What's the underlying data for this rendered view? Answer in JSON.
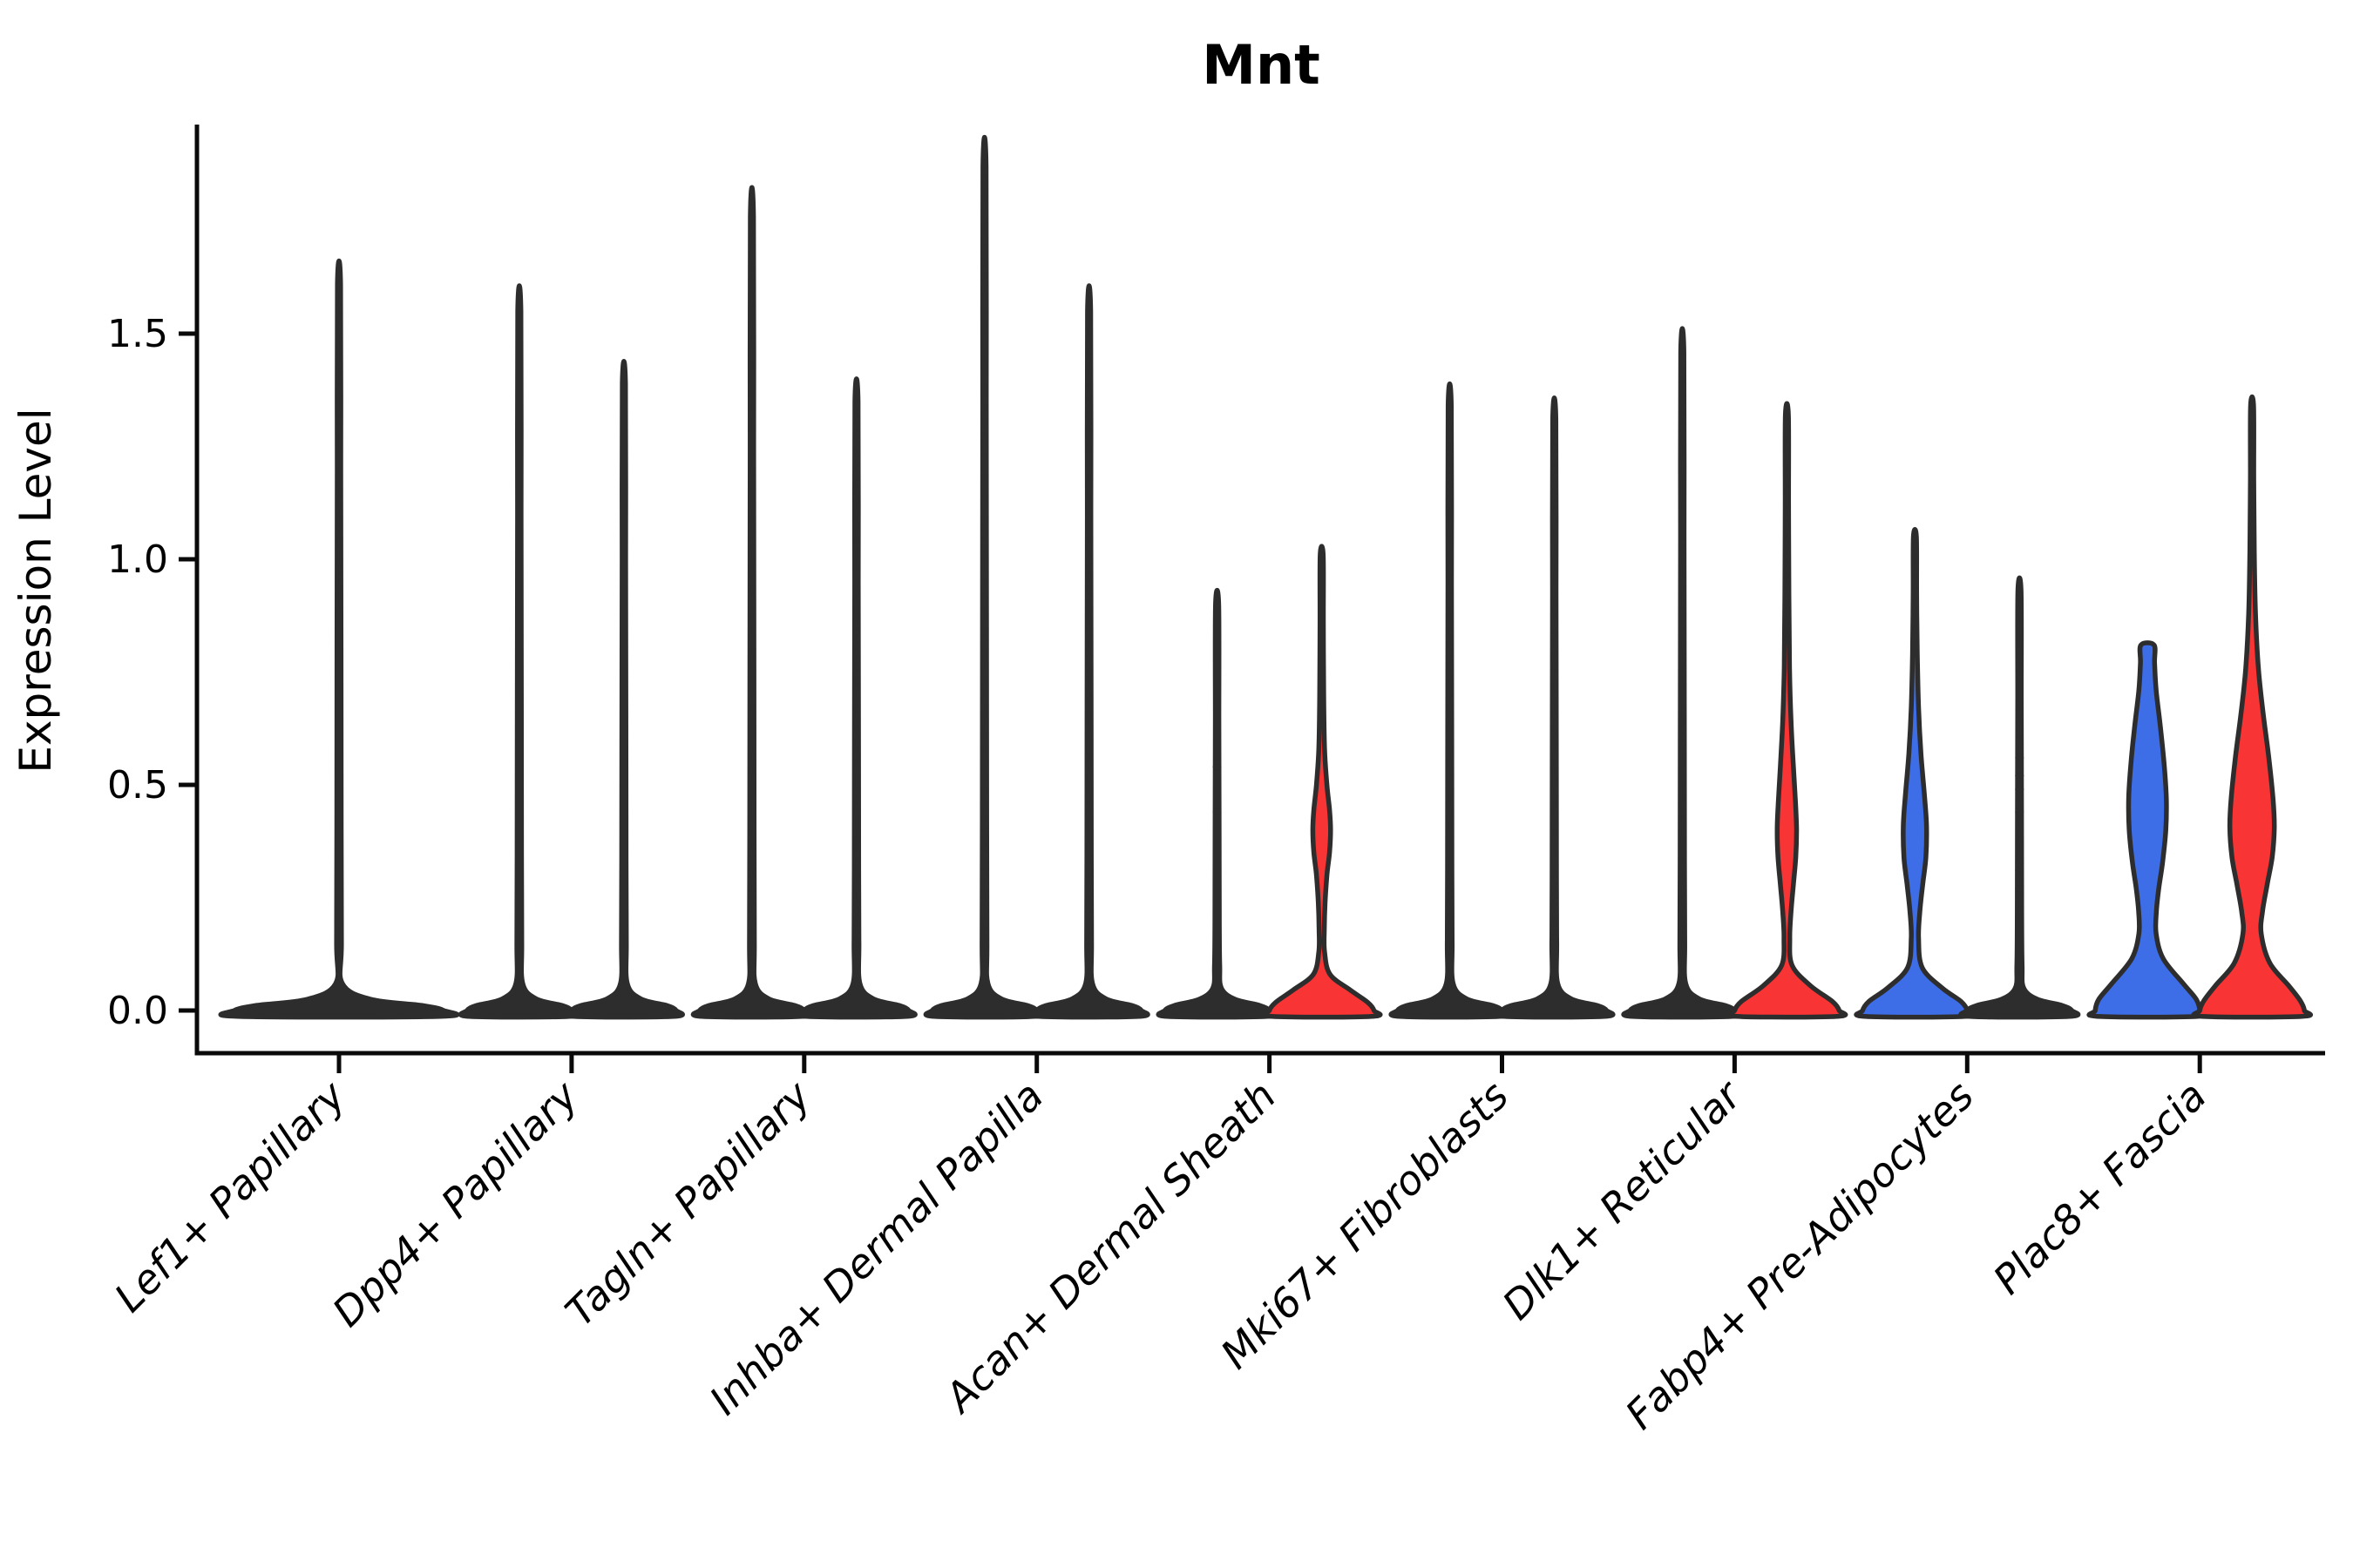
{
  "chart_data": {
    "type": "violin",
    "title": "Mnt",
    "ylabel": "Expression Level",
    "xlabel": "",
    "ylim": [
      -0.06,
      1.97
    ],
    "yticks": [
      {
        "value": 0.0,
        "label": "0.0"
      },
      {
        "value": 0.5,
        "label": "0.5"
      },
      {
        "value": 1.0,
        "label": "1.0"
      },
      {
        "value": 1.5,
        "label": "1.5"
      }
    ],
    "grid": false,
    "legend": "none",
    "categories": [
      "Lef1+ Papillary",
      "Dpp4+ Papillary",
      "Tagln+ Papillary",
      "Inhba+ Dermal Papilla",
      "Acan+ Dermal Sheath",
      "Mki67+ Fibroblasts",
      "Dlk1+ Reticular",
      "Fabp4+ Pre-Adipocytes",
      "Plac8+ Fascia"
    ],
    "colors": {
      "group_blue": "#3E6EE7",
      "group_red": "#F93434",
      "outline": "#2d2d2d",
      "axis": "#0a0a0a"
    },
    "note": "Split violin plot; most violins collapse to a thin spike (max expression) over a flat zero-density base. fill_visible=false means fill is hidden (spike thinner than outline).",
    "violins": [
      {
        "category_index": 0,
        "side": "center",
        "fill": "none",
        "fill_visible": false,
        "max_value": 1.61,
        "width_scale": 2,
        "profile": [
          [
            1.61,
            0.015
          ],
          [
            1.2,
            0.017
          ],
          [
            0.8,
            0.019
          ],
          [
            0.4,
            0.021
          ],
          [
            0.15,
            0.023
          ],
          [
            0.06,
            0.032
          ],
          [
            0.025,
            0.3
          ],
          [
            0.011,
            0.8
          ],
          [
            0.0,
            1.0
          ],
          [
            -0.013,
            0.97
          ]
        ],
        "points": []
      },
      {
        "category_index": 1,
        "side": "left",
        "fill": "blue",
        "fill_visible": false,
        "max_value": 1.55,
        "width_scale": 1,
        "profile": [
          [
            1.55,
            0.03
          ],
          [
            1.1,
            0.034
          ],
          [
            0.7,
            0.038
          ],
          [
            0.35,
            0.042
          ],
          [
            0.15,
            0.046
          ],
          [
            0.06,
            0.065
          ],
          [
            0.026,
            0.32
          ],
          [
            0.011,
            0.82
          ],
          [
            0.0,
            1.0
          ],
          [
            -0.013,
            0.96
          ]
        ],
        "points": []
      },
      {
        "category_index": 1,
        "side": "right",
        "fill": "red",
        "fill_visible": false,
        "max_value": 1.39,
        "width_scale": 1,
        "profile": [
          [
            1.39,
            0.03
          ],
          [
            1.0,
            0.034
          ],
          [
            0.65,
            0.038
          ],
          [
            0.33,
            0.042
          ],
          [
            0.15,
            0.046
          ],
          [
            0.06,
            0.065
          ],
          [
            0.026,
            0.32
          ],
          [
            0.011,
            0.82
          ],
          [
            0.0,
            1.0
          ],
          [
            -0.013,
            0.96
          ]
        ],
        "points": []
      },
      {
        "category_index": 2,
        "side": "left",
        "fill": "blue",
        "fill_visible": false,
        "max_value": 1.76,
        "width_scale": 1,
        "profile": [
          [
            1.76,
            0.03
          ],
          [
            1.25,
            0.034
          ],
          [
            0.8,
            0.038
          ],
          [
            0.4,
            0.042
          ],
          [
            0.15,
            0.046
          ],
          [
            0.06,
            0.065
          ],
          [
            0.026,
            0.32
          ],
          [
            0.011,
            0.82
          ],
          [
            0.0,
            1.0
          ],
          [
            -0.013,
            0.96
          ]
        ],
        "points": []
      },
      {
        "category_index": 2,
        "side": "right",
        "fill": "red",
        "fill_visible": false,
        "max_value": 1.35,
        "width_scale": 1,
        "profile": [
          [
            1.35,
            0.03
          ],
          [
            0.95,
            0.034
          ],
          [
            0.62,
            0.038
          ],
          [
            0.31,
            0.042
          ],
          [
            0.15,
            0.046
          ],
          [
            0.06,
            0.065
          ],
          [
            0.026,
            0.32
          ],
          [
            0.011,
            0.82
          ],
          [
            0.0,
            1.0
          ],
          [
            -0.013,
            0.96
          ]
        ],
        "points": []
      },
      {
        "category_index": 3,
        "side": "left",
        "fill": "blue",
        "fill_visible": false,
        "max_value": 1.87,
        "width_scale": 1,
        "profile": [
          [
            1.87,
            0.03
          ],
          [
            1.35,
            0.034
          ],
          [
            0.85,
            0.038
          ],
          [
            0.42,
            0.042
          ],
          [
            0.15,
            0.046
          ],
          [
            0.06,
            0.065
          ],
          [
            0.026,
            0.32
          ],
          [
            0.011,
            0.82
          ],
          [
            0.0,
            1.0
          ],
          [
            -0.013,
            0.96
          ]
        ],
        "points": []
      },
      {
        "category_index": 3,
        "side": "right",
        "fill": "red",
        "fill_visible": false,
        "max_value": 1.55,
        "width_scale": 1,
        "profile": [
          [
            1.55,
            0.03
          ],
          [
            1.1,
            0.034
          ],
          [
            0.7,
            0.038
          ],
          [
            0.35,
            0.042
          ],
          [
            0.15,
            0.046
          ],
          [
            0.06,
            0.065
          ],
          [
            0.026,
            0.32
          ],
          [
            0.011,
            0.82
          ],
          [
            0.0,
            1.0
          ],
          [
            -0.013,
            0.96
          ]
        ],
        "points": []
      },
      {
        "category_index": 4,
        "side": "left",
        "fill": "blue",
        "fill_visible": false,
        "max_value": 0.9,
        "width_scale": 1,
        "profile": [
          [
            0.9,
            0.03
          ],
          [
            0.65,
            0.034
          ],
          [
            0.4,
            0.038
          ],
          [
            0.2,
            0.042
          ],
          [
            0.1,
            0.05
          ],
          [
            0.05,
            0.08
          ],
          [
            0.025,
            0.34
          ],
          [
            0.011,
            0.82
          ],
          [
            0.0,
            1.0
          ],
          [
            -0.013,
            0.96
          ]
        ],
        "points": [
          0.54,
          0.44
        ]
      },
      {
        "category_index": 4,
        "side": "right",
        "fill": "red",
        "fill_visible": true,
        "max_value": 1.01,
        "width_scale": 1,
        "profile": [
          [
            1.01,
            0.028
          ],
          [
            0.86,
            0.032
          ],
          [
            0.7,
            0.038
          ],
          [
            0.58,
            0.055
          ],
          [
            0.5,
            0.1
          ],
          [
            0.445,
            0.15
          ],
          [
            0.4,
            0.17
          ],
          [
            0.35,
            0.15
          ],
          [
            0.3,
            0.1
          ],
          [
            0.24,
            0.065
          ],
          [
            0.18,
            0.05
          ],
          [
            0.13,
            0.055
          ],
          [
            0.08,
            0.16
          ],
          [
            0.045,
            0.55
          ],
          [
            0.018,
            0.88
          ],
          [
            0.0,
            1.0
          ],
          [
            -0.013,
            0.96
          ]
        ],
        "points": []
      },
      {
        "category_index": 5,
        "side": "left",
        "fill": "blue",
        "fill_visible": false,
        "max_value": 1.34,
        "width_scale": 1,
        "profile": [
          [
            1.34,
            0.03
          ],
          [
            0.95,
            0.034
          ],
          [
            0.62,
            0.038
          ],
          [
            0.31,
            0.042
          ],
          [
            0.15,
            0.046
          ],
          [
            0.06,
            0.065
          ],
          [
            0.026,
            0.32
          ],
          [
            0.011,
            0.82
          ],
          [
            0.0,
            1.0
          ],
          [
            -0.013,
            0.96
          ]
        ],
        "points": []
      },
      {
        "category_index": 5,
        "side": "right",
        "fill": "red",
        "fill_visible": false,
        "max_value": 1.31,
        "width_scale": 1,
        "profile": [
          [
            1.31,
            0.03
          ],
          [
            0.93,
            0.034
          ],
          [
            0.6,
            0.038
          ],
          [
            0.3,
            0.042
          ],
          [
            0.15,
            0.046
          ],
          [
            0.06,
            0.065
          ],
          [
            0.026,
            0.32
          ],
          [
            0.011,
            0.82
          ],
          [
            0.0,
            1.0
          ],
          [
            -0.013,
            0.96
          ]
        ],
        "points": []
      },
      {
        "category_index": 6,
        "side": "left",
        "fill": "blue",
        "fill_visible": false,
        "max_value": 1.46,
        "width_scale": 1,
        "profile": [
          [
            1.46,
            0.03
          ],
          [
            1.05,
            0.034
          ],
          [
            0.66,
            0.038
          ],
          [
            0.33,
            0.042
          ],
          [
            0.15,
            0.046
          ],
          [
            0.06,
            0.065
          ],
          [
            0.026,
            0.32
          ],
          [
            0.011,
            0.82
          ],
          [
            0.0,
            1.0
          ],
          [
            -0.013,
            0.96
          ]
        ],
        "points": []
      },
      {
        "category_index": 6,
        "side": "right",
        "fill": "red",
        "fill_visible": true,
        "max_value": 1.32,
        "width_scale": 1,
        "profile": [
          [
            1.32,
            0.028
          ],
          [
            1.12,
            0.032
          ],
          [
            0.92,
            0.038
          ],
          [
            0.76,
            0.05
          ],
          [
            0.64,
            0.08
          ],
          [
            0.54,
            0.125
          ],
          [
            0.46,
            0.165
          ],
          [
            0.4,
            0.185
          ],
          [
            0.34,
            0.17
          ],
          [
            0.28,
            0.125
          ],
          [
            0.22,
            0.08
          ],
          [
            0.16,
            0.055
          ],
          [
            0.1,
            0.1
          ],
          [
            0.055,
            0.45
          ],
          [
            0.02,
            0.87
          ],
          [
            0.0,
            1.0
          ],
          [
            -0.013,
            0.96
          ]
        ],
        "points": []
      },
      {
        "category_index": 7,
        "side": "left",
        "fill": "blue",
        "fill_visible": true,
        "max_value": 1.05,
        "width_scale": 1,
        "profile": [
          [
            1.05,
            0.028
          ],
          [
            0.92,
            0.033
          ],
          [
            0.79,
            0.045
          ],
          [
            0.67,
            0.07
          ],
          [
            0.57,
            0.115
          ],
          [
            0.48,
            0.18
          ],
          [
            0.41,
            0.222
          ],
          [
            0.34,
            0.21
          ],
          [
            0.28,
            0.15
          ],
          [
            0.22,
            0.095
          ],
          [
            0.16,
            0.07
          ],
          [
            0.095,
            0.14
          ],
          [
            0.05,
            0.52
          ],
          [
            0.02,
            0.88
          ],
          [
            0.0,
            1.0
          ],
          [
            -0.013,
            0.96
          ]
        ],
        "points": []
      },
      {
        "category_index": 7,
        "side": "right",
        "fill": "red",
        "fill_visible": false,
        "max_value": 0.93,
        "width_scale": 1,
        "profile": [
          [
            0.93,
            0.03
          ],
          [
            0.7,
            0.034
          ],
          [
            0.45,
            0.038
          ],
          [
            0.22,
            0.042
          ],
          [
            0.1,
            0.05
          ],
          [
            0.05,
            0.08
          ],
          [
            0.025,
            0.34
          ],
          [
            0.011,
            0.82
          ],
          [
            0.0,
            1.0
          ],
          [
            -0.013,
            0.96
          ]
        ],
        "points": [
          0.56,
          0.52,
          0.49,
          0.44,
          0.33,
          0.31,
          0.29,
          0.27,
          0.17
        ]
      },
      {
        "category_index": 8,
        "side": "left",
        "fill": "blue",
        "fill_visible": true,
        "max_value": 0.81,
        "width_scale": 1,
        "profile": [
          [
            0.81,
            0.125
          ],
          [
            0.77,
            0.135
          ],
          [
            0.71,
            0.165
          ],
          [
            0.63,
            0.245
          ],
          [
            0.55,
            0.315
          ],
          [
            0.47,
            0.36
          ],
          [
            0.4,
            0.35
          ],
          [
            0.33,
            0.29
          ],
          [
            0.27,
            0.215
          ],
          [
            0.22,
            0.17
          ],
          [
            0.17,
            0.165
          ],
          [
            0.115,
            0.3
          ],
          [
            0.06,
            0.68
          ],
          [
            0.025,
            0.93
          ],
          [
            0.0,
            1.0
          ],
          [
            -0.013,
            0.96
          ]
        ],
        "points": []
      },
      {
        "category_index": 8,
        "side": "right",
        "fill": "red",
        "fill_visible": true,
        "max_value": 1.34,
        "width_scale": 1,
        "profile": [
          [
            1.34,
            0.028
          ],
          [
            1.18,
            0.032
          ],
          [
            1.02,
            0.042
          ],
          [
            0.88,
            0.065
          ],
          [
            0.76,
            0.12
          ],
          [
            0.66,
            0.21
          ],
          [
            0.56,
            0.32
          ],
          [
            0.47,
            0.4
          ],
          [
            0.405,
            0.425
          ],
          [
            0.34,
            0.385
          ],
          [
            0.28,
            0.29
          ],
          [
            0.22,
            0.2
          ],
          [
            0.17,
            0.175
          ],
          [
            0.105,
            0.34
          ],
          [
            0.055,
            0.7
          ],
          [
            0.022,
            0.92
          ],
          [
            0.0,
            1.0
          ],
          [
            -0.013,
            0.96
          ]
        ],
        "points": []
      }
    ]
  }
}
